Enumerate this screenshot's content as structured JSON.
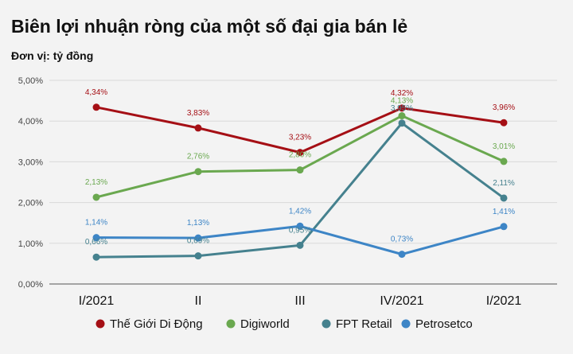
{
  "title": "Biên lợi nhuận ròng của một số đại gia bán lẻ",
  "subtitle": "Đơn vị: tỷ đồng",
  "chart_data": {
    "type": "line",
    "title": "Biên lợi nhuận ròng của một số đại gia bán lẻ",
    "subtitle": "Đơn vị: tỷ đồng",
    "categories": [
      "I/2021",
      "II",
      "III",
      "IV/2021",
      "I/2021"
    ],
    "ylim": [
      0,
      5
    ],
    "yticks": [
      "0,00%",
      "1,00%",
      "2,00%",
      "3,00%",
      "4,00%",
      "5,00%"
    ],
    "grid": true,
    "legend_position": "bottom",
    "series": [
      {
        "name": "Thế Giới Di Động",
        "color": "#a50f15",
        "values": [
          4.34,
          3.83,
          3.23,
          4.32,
          3.96
        ],
        "labels": [
          "4,34%",
          "3,83%",
          "3,23%",
          "4,32%",
          "3,96%"
        ]
      },
      {
        "name": "Digiworld",
        "color": "#6aa84f",
        "values": [
          2.13,
          2.76,
          2.8,
          4.13,
          3.01
        ],
        "labels": [
          "2,13%",
          "2,76%",
          "2,80%",
          "4,13%",
          "3,01%"
        ]
      },
      {
        "name": "FPT Retail",
        "color": "#45818e",
        "values": [
          0.66,
          0.69,
          0.95,
          3.95,
          2.11
        ],
        "labels": [
          "0,66%",
          "0,69%",
          "0,95%",
          "3,95%",
          "2,11%"
        ]
      },
      {
        "name": "Petrosetco",
        "color": "#3d85c6",
        "values": [
          1.14,
          1.13,
          1.42,
          0.73,
          1.41
        ],
        "labels": [
          "1,14%",
          "1,13%",
          "1,42%",
          "0,73%",
          "1,41%"
        ]
      }
    ]
  }
}
